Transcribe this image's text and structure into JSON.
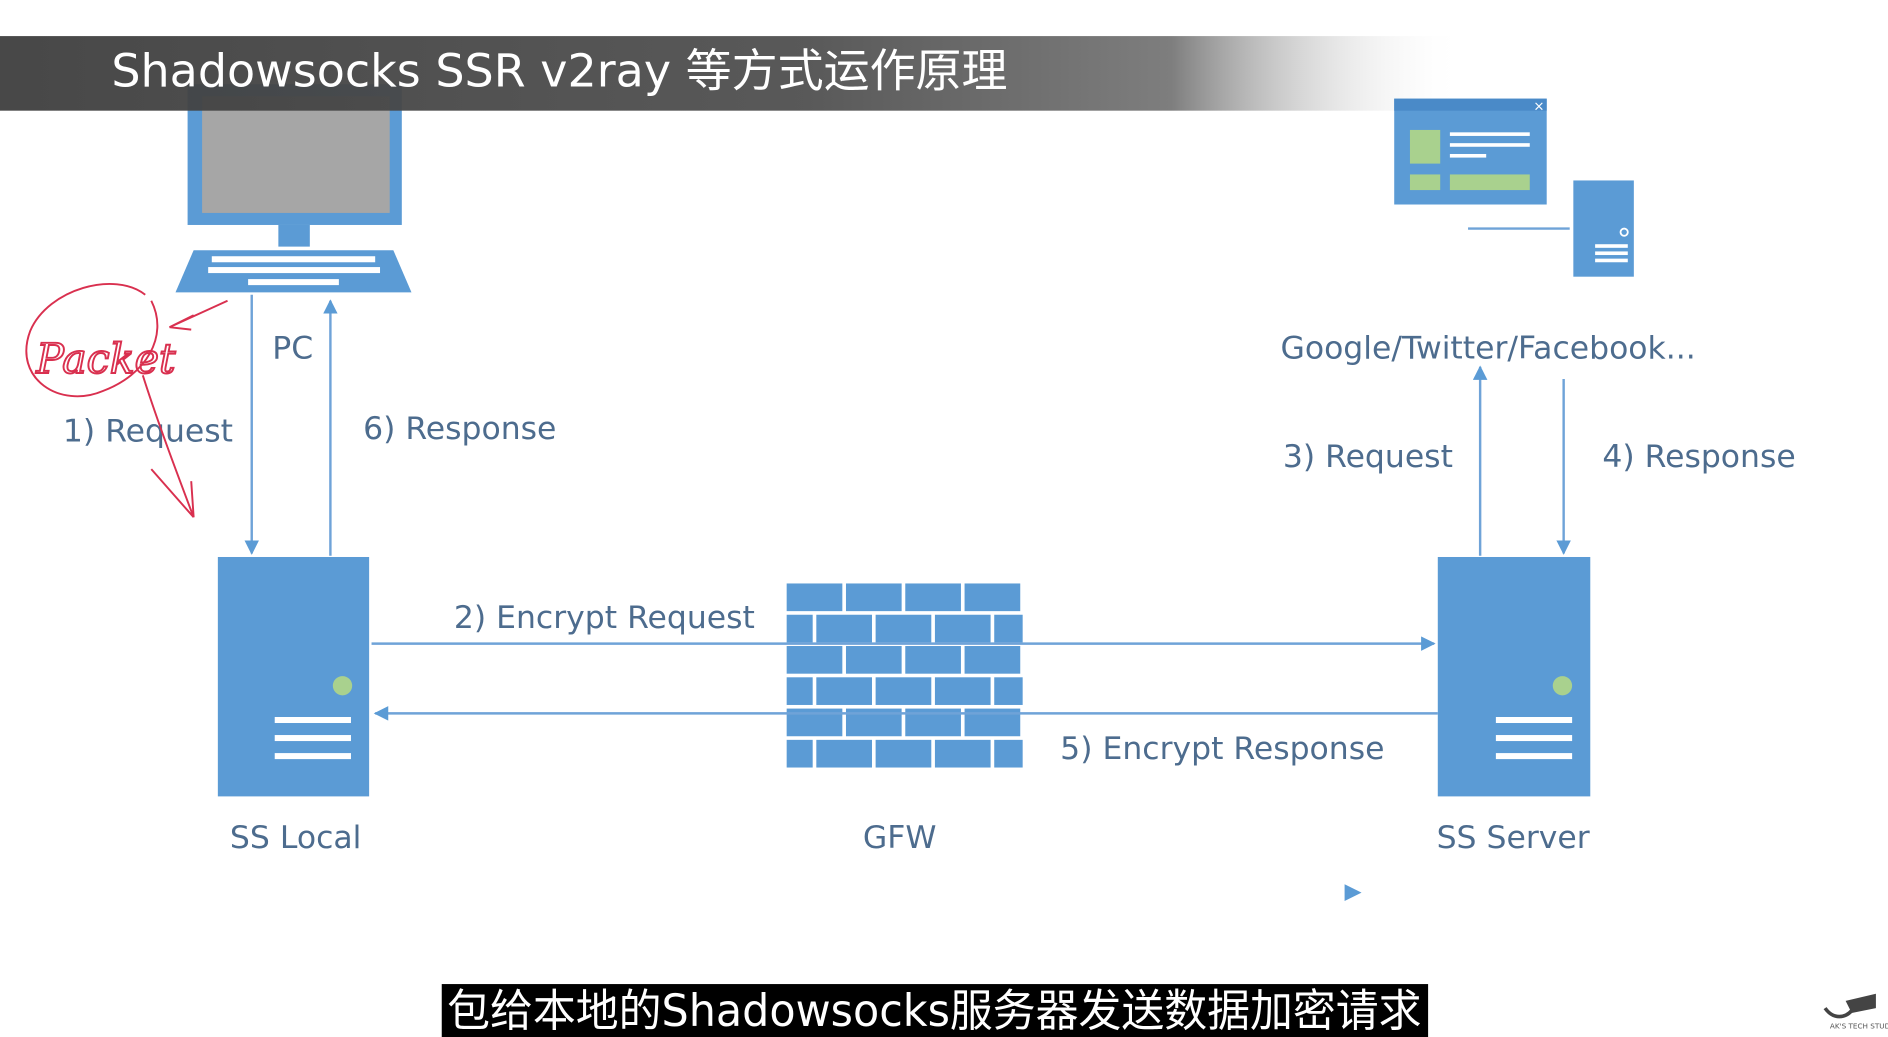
{
  "title": "Shadowsocks SSR v2ray 等方式运作原理",
  "colors": {
    "node_blue": "#5b9bd5",
    "line_blue": "#6fa3d8",
    "label_text": "#4d6c8e",
    "annotation_red": "#d9304f",
    "accent_green": "#a9d18e"
  },
  "diagram": {
    "pc_label": "PC",
    "ss_local_label": "SS Local",
    "gfw_label": "GFW",
    "ss_server_label": "SS Server",
    "sites_label": "Google/Twitter/Facebook...",
    "edges": {
      "e1": "1) Request",
      "e2": "2) Encrypt Request",
      "e3": "3) Request",
      "e4": "4) Response",
      "e5": "5) Encrypt Response",
      "e6": "6) Response"
    },
    "annotation": "Packet"
  },
  "subtitle": "包给本地的Shadowsocks服务器发送数据加密请求",
  "watermark": "AK'S TECH STUDIO"
}
